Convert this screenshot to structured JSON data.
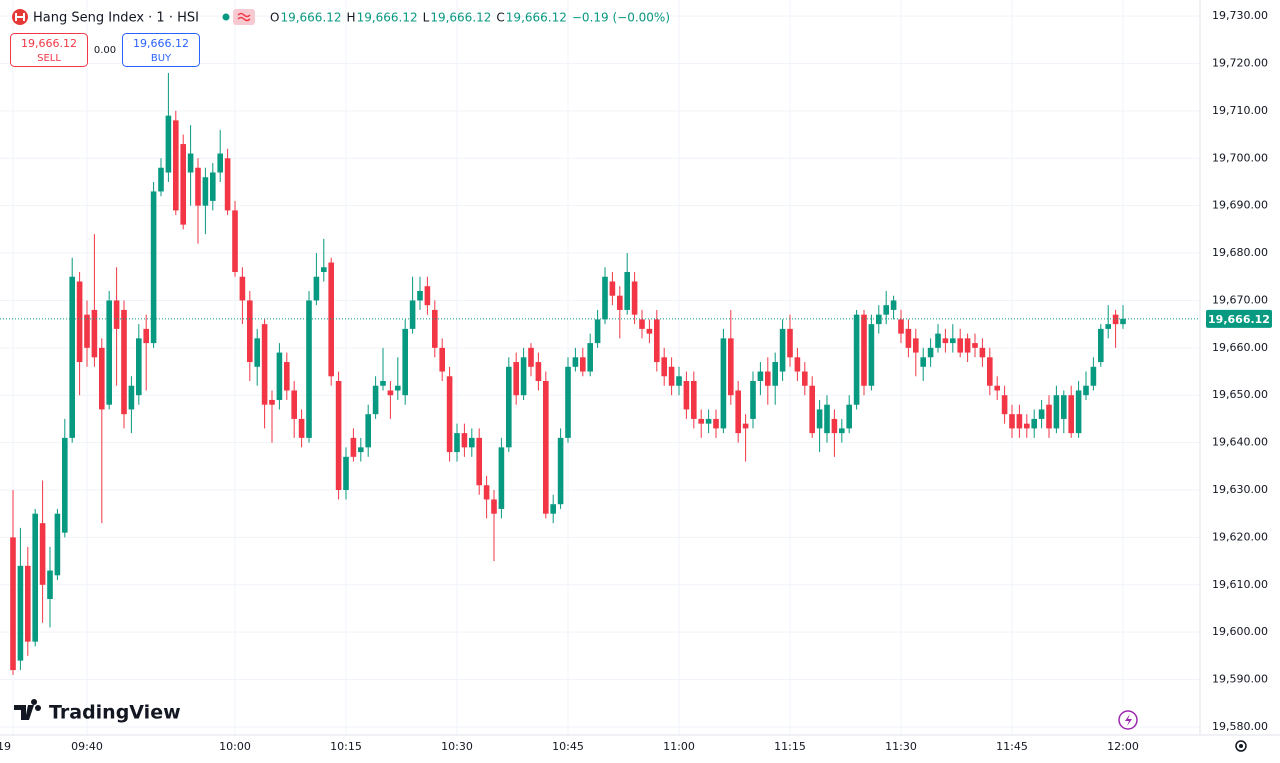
{
  "chart_data": {
    "type": "candlestick",
    "title": "Hang Seng Index · 1 · HSI",
    "ohlc_legend": [
      {
        "key": "O",
        "value": "19,666.12"
      },
      {
        "key": "H",
        "value": "19,666.12"
      },
      {
        "key": "L",
        "value": "19,666.12"
      },
      {
        "key": "C",
        "value": "19,666.12"
      }
    ],
    "change": "−0.19 (−0.00%)",
    "sell": {
      "price": "19,666.12",
      "label": "SELL"
    },
    "buy": {
      "price": "19,666.12",
      "label": "BUY"
    },
    "spread": "0.00",
    "brand": "TradingView",
    "up_color": "#089981",
    "down_color": "#f23645",
    "grid": true,
    "last_price": {
      "value": 19666.12,
      "label": "19,666.12"
    },
    "ylim": [
      19578.3,
      19733.4
    ],
    "yticks": [
      {
        "value": 19730,
        "label": "19,730.00"
      },
      {
        "value": 19720,
        "label": "19,720.00"
      },
      {
        "value": 19710,
        "label": "19,710.00"
      },
      {
        "value": 19700,
        "label": "19,700.00"
      },
      {
        "value": 19690,
        "label": "19,690.00"
      },
      {
        "value": 19680,
        "label": "19,680.00"
      },
      {
        "value": 19670,
        "label": "19,670.00"
      },
      {
        "value": 19660,
        "label": "19,660.00"
      },
      {
        "value": 19650,
        "label": "19,650.00"
      },
      {
        "value": 19640,
        "label": "19,640.00"
      },
      {
        "value": 19630,
        "label": "19,630.00"
      },
      {
        "value": 19620,
        "label": "19,620.00"
      },
      {
        "value": 19610,
        "label": "19,610.00"
      },
      {
        "value": 19600,
        "label": "19,600.00"
      },
      {
        "value": 19590,
        "label": "19,590.00"
      },
      {
        "value": 19580,
        "label": "19,580.00"
      }
    ],
    "categories": [
      "19",
      null,
      null,
      null,
      null,
      null,
      null,
      null,
      null,
      null,
      "09:40",
      null,
      null,
      null,
      null,
      null,
      null,
      null,
      null,
      null,
      null,
      null,
      null,
      null,
      null,
      null,
      null,
      null,
      null,
      null,
      "10:00",
      null,
      null,
      null,
      null,
      null,
      null,
      null,
      null,
      null,
      null,
      null,
      null,
      null,
      null,
      "10:15",
      null,
      null,
      null,
      null,
      null,
      null,
      null,
      null,
      null,
      null,
      null,
      null,
      null,
      null,
      "10:30",
      null,
      null,
      null,
      null,
      null,
      null,
      null,
      null,
      null,
      null,
      null,
      null,
      null,
      null,
      "10:45",
      null,
      null,
      null,
      null,
      null,
      null,
      null,
      null,
      null,
      null,
      null,
      null,
      null,
      null,
      "11:00",
      null,
      null,
      null,
      null,
      null,
      null,
      null,
      null,
      null,
      null,
      null,
      null,
      null,
      null,
      "11:15",
      null,
      null,
      null,
      null,
      null,
      null,
      null,
      null,
      null,
      null,
      null,
      null,
      null,
      null,
      "11:30",
      null,
      null,
      null,
      null,
      null,
      null,
      null,
      null,
      null,
      null,
      null,
      null,
      null,
      null,
      "11:45",
      null,
      null,
      null,
      null,
      null,
      null,
      null,
      null,
      null,
      null,
      null,
      null,
      null,
      null,
      "12:00"
    ],
    "open": [
      19620,
      19594,
      19614,
      19598,
      19623,
      19607,
      19612,
      19621,
      19641,
      19674,
      19667,
      19668,
      19660,
      19648,
      19670,
      19668,
      19647,
      19650,
      19664,
      19661,
      19693,
      19697,
      19708,
      19703,
      19697,
      19698,
      19690,
      19691,
      19697,
      19700,
      19689,
      19675,
      19670,
      19656,
      19665,
      19649,
      19649,
      19657,
      19651,
      19645,
      19641,
      19670,
      19676,
      19678,
      19653,
      19630,
      19641,
      19638,
      19639,
      19646,
      19652,
      19651,
      19651,
      19650,
      19664,
      19670,
      19673,
      19668,
      19660,
      19654,
      19638,
      19642,
      19639,
      19641,
      19631,
      19628,
      19626,
      19639,
      19657,
      19650,
      19660,
      19657,
      19653,
      19625,
      19627,
      19641,
      19656,
      19658,
      19655,
      19661,
      19666,
      19674,
      19671,
      19668,
      19674,
      19666,
      19664,
      19666,
      19658,
      19656,
      19652,
      19653,
      19653,
      19645,
      19644,
      19645,
      19643,
      19662,
      19651,
      19644,
      19645,
      19653,
      19655,
      19652,
      19655,
      19664,
      19658,
      19655,
      19652,
      19643,
      19642,
      19645,
      19642,
      19643,
      19648,
      19667,
      19652,
      19665,
      19667,
      19668,
      19666,
      19664,
      19662,
      19656,
      19658,
      19660,
      19662,
      19661,
      19662,
      19662,
      19661,
      19660,
      19658,
      19652,
      19650,
      19646,
      19646,
      19644,
      19643,
      19645,
      19648,
      19643,
      19645,
      19650,
      19642,
      19650,
      19652,
      19657,
      19664,
      19667,
      19665
    ],
    "high": [
      19630,
      19622,
      19618,
      19626,
      19632,
      19618,
      19626,
      19645,
      19679,
      19676,
      19670,
      19684,
      19662,
      19672,
      19677,
      19670,
      19654,
      19665,
      19667,
      19695,
      19700,
      19718,
      19710,
      19705,
      19707,
      19700,
      19698,
      19699,
      19706,
      19702,
      19691,
      19677,
      19672,
      19664,
      19666,
      19651,
      19661,
      19659,
      19653,
      19647,
      19672,
      19680,
      19683,
      19679,
      19655,
      19639,
      19643,
      19641,
      19648,
      19654,
      19660,
      19653,
      19658,
      19666,
      19675,
      19675,
      19675,
      19670,
      19662,
      19656,
      19644,
      19644,
      19643,
      19643,
      19633,
      19630,
      19641,
      19658,
      19659,
      19660,
      19661,
      19659,
      19655,
      19629,
      19643,
      19658,
      19660,
      19660,
      19663,
      19668,
      19677,
      19676,
      19673,
      19680,
      19676,
      19668,
      19666,
      19668,
      19660,
      19658,
      19656,
      19655,
      19655,
      19647,
      19647,
      19647,
      19664,
      19668,
      19653,
      19646,
      19655,
      19657,
      19658,
      19659,
      19666,
      19667,
      19660,
      19657,
      19654,
      19649,
      19650,
      19647,
      19645,
      19650,
      19668,
      19668,
      19667,
      19669,
      19672,
      19671,
      19668,
      19666,
      19664,
      19660,
      19662,
      19665,
      19664,
      19665,
      19664,
      19663,
      19663,
      19662,
      19660,
      19654,
      19652,
      19648,
      19648,
      19646,
      19647,
      19649,
      19650,
      19652,
      19651,
      19652,
      19653,
      19655,
      19658,
      19665,
      19669,
      19668,
      19669
    ],
    "low": [
      19591,
      19592,
      19595,
      19597,
      19602,
      19601,
      19611,
      19620,
      19640,
      19650,
      19656,
      19656,
      19623,
      19647,
      19652,
      19643,
      19642,
      19648,
      19651,
      19660,
      19692,
      19695,
      19688,
      19685,
      19690,
      19682,
      19684,
      19689,
      19695,
      19688,
      19675,
      19665,
      19653,
      19652,
      19643,
      19640,
      19647,
      19649,
      19641,
      19639,
      19640,
      19669,
      19674,
      19652,
      19628,
      19628,
      19636,
      19636,
      19637,
      19645,
      19651,
      19645,
      19649,
      19648,
      19663,
      19668,
      19667,
      19658,
      19653,
      19636,
      19636,
      19637,
      19637,
      19629,
      19624,
      19615,
      19624,
      19638,
      19648,
      19649,
      19654,
      19651,
      19624,
      19623,
      19626,
      19640,
      19655,
      19654,
      19654,
      19660,
      19665,
      19669,
      19662,
      19667,
      19665,
      19662,
      19661,
      19655,
      19652,
      19650,
      19650,
      19645,
      19643,
      19641,
      19642,
      19641,
      19642,
      19648,
      19640,
      19636,
      19643,
      19650,
      19648,
      19648,
      19653,
      19656,
      19653,
      19650,
      19641,
      19638,
      19640,
      19637,
      19640,
      19642,
      19647,
      19650,
      19651,
      19663,
      19665,
      19666,
      19661,
      19658,
      19654,
      19653,
      19656,
      19659,
      19659,
      19659,
      19658,
      19657,
      19658,
      19656,
      19650,
      19649,
      19644,
      19641,
      19641,
      19641,
      19641,
      19643,
      19641,
      19642,
      19642,
      19641,
      19641,
      19649,
      19651,
      19656,
      19662,
      19660,
      19664
    ],
    "close": [
      19592,
      19614,
      19598,
      19625,
      19610,
      19613,
      19625,
      19641,
      19675,
      19657,
      19660,
      19658,
      19647,
      19670,
      19664,
      19646,
      19652,
      19662,
      19661,
      19693,
      19698,
      19709,
      19689,
      19686,
      19701,
      19690,
      19696,
      19697,
      19701,
      19689,
      19676,
      19670,
      19657,
      19662,
      19648,
      19648,
      19659,
      19651,
      19645,
      19641,
      19670,
      19675,
      19677,
      19654,
      19630,
      19637,
      19637,
      19639,
      19646,
      19652,
      19653,
      19650,
      19652,
      19664,
      19670,
      19672,
      19669,
      19660,
      19655,
      19638,
      19642,
      19639,
      19641,
      19631,
      19628,
      19625,
      19639,
      19656,
      19650,
      19658,
      19656,
      19653,
      19625,
      19627,
      19641,
      19656,
      19658,
      19655,
      19661,
      19666,
      19675,
      19671,
      19668,
      19676,
      19667,
      19664,
      19663,
      19657,
      19654,
      19652,
      19654,
      19647,
      19645,
      19644,
      19645,
      19643,
      19662,
      19650,
      19642,
      19643,
      19653,
      19655,
      19652,
      19657,
      19664,
      19658,
      19655,
      19652,
      19642,
      19647,
      19648,
      19642,
      19643,
      19648,
      19667,
      19652,
      19665,
      19667,
      19669,
      19670,
      19663,
      19660,
      19659,
      19658,
      19660,
      19663,
      19661,
      19662,
      19659,
      19659,
      19660,
      19658,
      19652,
      19651,
      19646,
      19643,
      19643,
      19643,
      19645,
      19647,
      19643,
      19650,
      19650,
      19642,
      19651,
      19652,
      19656,
      19664,
      19665,
      19665,
      19666.12
    ]
  }
}
